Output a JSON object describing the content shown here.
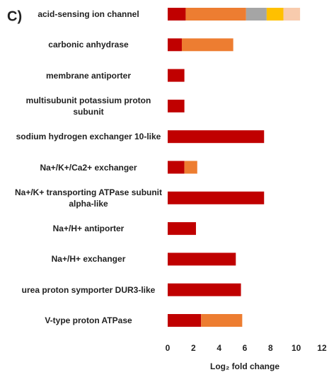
{
  "chart_data": {
    "type": "stacked-barh",
    "panel_label": "C)",
    "categories": [
      "acid-sensing ion channel",
      "carbonic anhydrase",
      "membrane antiporter",
      "multisubunit potassium proton subunit",
      "sodium hydrogen exchanger 10-like",
      "Na+/K+/Ca2+ exchanger",
      "Na+/K+ transporting ATPase subunit alpha-like",
      "Na+/H+ antiporter",
      "Na+/H+ exchanger",
      "urea proton symporter DUR3-like",
      "V-type proton ATPase"
    ],
    "series": [
      {
        "color": "#c00000",
        "values": [
          1.4,
          1.1,
          1.3,
          1.3,
          7.5,
          1.3,
          7.5,
          2.2,
          5.3,
          5.7,
          2.6
        ]
      },
      {
        "color": "#ed7d31",
        "values": [
          4.7,
          4.0,
          null,
          null,
          null,
          1.0,
          null,
          null,
          null,
          null,
          3.2
        ]
      },
      {
        "color": "#a5a5a5",
        "values": [
          1.6,
          null,
          null,
          null,
          null,
          null,
          null,
          null,
          null,
          null,
          null
        ]
      },
      {
        "color": "#ffc000",
        "values": [
          1.3,
          null,
          null,
          null,
          null,
          null,
          null,
          null,
          null,
          null,
          null
        ]
      },
      {
        "color": "#f8cbad",
        "values": [
          1.3,
          null,
          null,
          null,
          null,
          null,
          null,
          null,
          null,
          null,
          null
        ]
      }
    ],
    "xlim": [
      0,
      12
    ],
    "xticks": [
      0,
      2,
      4,
      6,
      8,
      10,
      12
    ],
    "xlabel": "Log₂ fold change"
  }
}
